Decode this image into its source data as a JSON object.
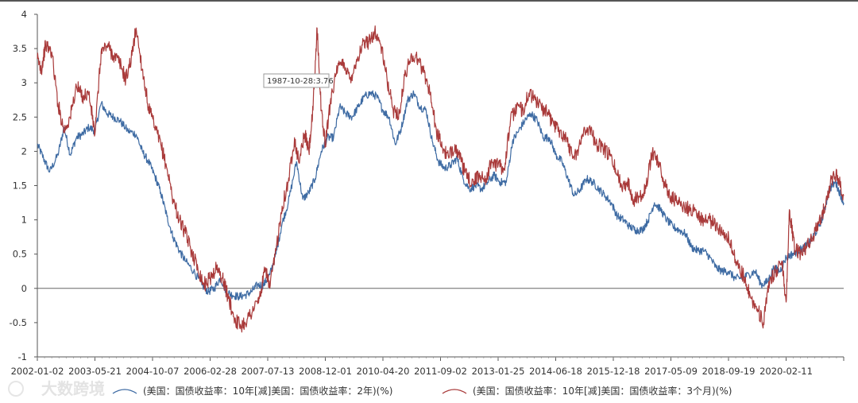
{
  "chart_data": {
    "type": "line",
    "title": "",
    "xlabel": "",
    "ylabel": "",
    "ylim": [
      -1,
      4
    ],
    "y_ticks": [
      -1,
      -0.5,
      0,
      0.5,
      1,
      1.5,
      2,
      2.5,
      3,
      3.5,
      4
    ],
    "x_tick_labels": [
      "2002-01-02",
      "2003-05-21",
      "2004-10-07",
      "2006-02-28",
      "2007-07-13",
      "2008-12-01",
      "2010-04-20",
      "2011-09-02",
      "2013-01-25",
      "2014-06-18",
      "2015-12-18",
      "2017-05-09",
      "2018-09-19",
      "2020-02-11"
    ],
    "x_range_years": [
      2002.0,
      2021.6
    ],
    "zero_line": true,
    "series": [
      {
        "name": "(美国：国债收益率：10年[减]美国：国债收益率：2年)(%)",
        "color": "#3e6ba3",
        "points": [
          [
            2002.0,
            2.1
          ],
          [
            2002.15,
            1.9
          ],
          [
            2002.3,
            1.7
          ],
          [
            2002.5,
            1.95
          ],
          [
            2002.65,
            2.35
          ],
          [
            2002.8,
            1.95
          ],
          [
            2002.95,
            2.2
          ],
          [
            2003.1,
            2.25
          ],
          [
            2003.25,
            2.35
          ],
          [
            2003.4,
            2.3
          ],
          [
            2003.55,
            2.7
          ],
          [
            2003.7,
            2.55
          ],
          [
            2003.85,
            2.5
          ],
          [
            2004.0,
            2.45
          ],
          [
            2004.2,
            2.3
          ],
          [
            2004.4,
            2.25
          ],
          [
            2004.55,
            2.0
          ],
          [
            2004.7,
            1.85
          ],
          [
            2004.85,
            1.65
          ],
          [
            2005.0,
            1.4
          ],
          [
            2005.15,
            1.05
          ],
          [
            2005.3,
            0.75
          ],
          [
            2005.45,
            0.55
          ],
          [
            2005.6,
            0.4
          ],
          [
            2005.8,
            0.25
          ],
          [
            2006.0,
            0.05
          ],
          [
            2006.15,
            -0.05
          ],
          [
            2006.3,
            0.0
          ],
          [
            2006.45,
            0.15
          ],
          [
            2006.6,
            -0.05
          ],
          [
            2006.75,
            -0.1
          ],
          [
            2006.9,
            -0.12
          ],
          [
            2007.05,
            -0.1
          ],
          [
            2007.2,
            -0.05
          ],
          [
            2007.35,
            0.05
          ],
          [
            2007.5,
            0.05
          ],
          [
            2007.65,
            0.2
          ],
          [
            2007.8,
            0.5
          ],
          [
            2007.95,
            0.95
          ],
          [
            2008.1,
            1.25
          ],
          [
            2008.3,
            1.85
          ],
          [
            2008.45,
            1.3
          ],
          [
            2008.6,
            1.4
          ],
          [
            2008.75,
            1.6
          ],
          [
            2008.9,
            2.0
          ],
          [
            2009.05,
            2.2
          ],
          [
            2009.2,
            2.2
          ],
          [
            2009.35,
            2.65
          ],
          [
            2009.5,
            2.55
          ],
          [
            2009.65,
            2.5
          ],
          [
            2009.8,
            2.65
          ],
          [
            2009.95,
            2.8
          ],
          [
            2010.1,
            2.85
          ],
          [
            2010.25,
            2.8
          ],
          [
            2010.4,
            2.6
          ],
          [
            2010.55,
            2.5
          ],
          [
            2010.7,
            2.1
          ],
          [
            2010.85,
            2.35
          ],
          [
            2011.0,
            2.75
          ],
          [
            2011.15,
            2.85
          ],
          [
            2011.3,
            2.65
          ],
          [
            2011.45,
            2.6
          ],
          [
            2011.6,
            2.15
          ],
          [
            2011.75,
            1.85
          ],
          [
            2011.9,
            1.75
          ],
          [
            2012.05,
            1.8
          ],
          [
            2012.2,
            1.9
          ],
          [
            2012.35,
            1.6
          ],
          [
            2012.5,
            1.45
          ],
          [
            2012.65,
            1.5
          ],
          [
            2012.8,
            1.45
          ],
          [
            2012.95,
            1.55
          ],
          [
            2013.1,
            1.65
          ],
          [
            2013.25,
            1.55
          ],
          [
            2013.4,
            1.55
          ],
          [
            2013.55,
            2.15
          ],
          [
            2013.7,
            2.3
          ],
          [
            2013.85,
            2.45
          ],
          [
            2014.0,
            2.55
          ],
          [
            2014.15,
            2.45
          ],
          [
            2014.3,
            2.2
          ],
          [
            2014.45,
            2.2
          ],
          [
            2014.6,
            1.95
          ],
          [
            2014.75,
            1.85
          ],
          [
            2014.9,
            1.6
          ],
          [
            2015.05,
            1.35
          ],
          [
            2015.2,
            1.45
          ],
          [
            2015.35,
            1.6
          ],
          [
            2015.5,
            1.55
          ],
          [
            2015.65,
            1.45
          ],
          [
            2015.8,
            1.35
          ],
          [
            2015.95,
            1.25
          ],
          [
            2016.1,
            1.05
          ],
          [
            2016.25,
            1.0
          ],
          [
            2016.4,
            0.9
          ],
          [
            2016.55,
            0.85
          ],
          [
            2016.7,
            0.85
          ],
          [
            2016.85,
            1.0
          ],
          [
            2017.0,
            1.25
          ],
          [
            2017.15,
            1.15
          ],
          [
            2017.3,
            1.0
          ],
          [
            2017.45,
            0.9
          ],
          [
            2017.6,
            0.85
          ],
          [
            2017.75,
            0.8
          ],
          [
            2017.9,
            0.6
          ],
          [
            2018.05,
            0.55
          ],
          [
            2018.2,
            0.55
          ],
          [
            2018.35,
            0.45
          ],
          [
            2018.5,
            0.3
          ],
          [
            2018.65,
            0.25
          ],
          [
            2018.8,
            0.25
          ],
          [
            2018.95,
            0.15
          ],
          [
            2019.1,
            0.15
          ],
          [
            2019.3,
            0.2
          ],
          [
            2019.45,
            0.25
          ],
          [
            2019.6,
            0.05
          ],
          [
            2019.75,
            0.1
          ],
          [
            2019.9,
            0.3
          ],
          [
            2020.05,
            0.25
          ],
          [
            2020.2,
            0.45
          ],
          [
            2020.35,
            0.5
          ],
          [
            2020.5,
            0.55
          ],
          [
            2020.65,
            0.6
          ],
          [
            2020.8,
            0.7
          ],
          [
            2020.95,
            0.85
          ],
          [
            2021.1,
            1.05
          ],
          [
            2021.25,
            1.45
          ],
          [
            2021.4,
            1.55
          ],
          [
            2021.5,
            1.4
          ],
          [
            2021.6,
            1.25
          ]
        ]
      },
      {
        "name": "(美国：国债收益率：10年[减]美国：国债收益率：3个月)(%)",
        "color": "#a93a3a",
        "points": [
          [
            2002.0,
            3.35
          ],
          [
            2002.1,
            3.2
          ],
          [
            2002.2,
            3.55
          ],
          [
            2002.35,
            3.45
          ],
          [
            2002.5,
            2.7
          ],
          [
            2002.65,
            2.3
          ],
          [
            2002.8,
            2.5
          ],
          [
            2002.95,
            2.95
          ],
          [
            2003.1,
            2.8
          ],
          [
            2003.25,
            2.85
          ],
          [
            2003.4,
            2.25
          ],
          [
            2003.55,
            3.45
          ],
          [
            2003.7,
            3.55
          ],
          [
            2003.85,
            3.4
          ],
          [
            2004.0,
            3.3
          ],
          [
            2004.15,
            3.05
          ],
          [
            2004.3,
            3.4
          ],
          [
            2004.4,
            3.8
          ],
          [
            2004.55,
            3.2
          ],
          [
            2004.7,
            2.65
          ],
          [
            2004.85,
            2.35
          ],
          [
            2005.0,
            2.1
          ],
          [
            2005.15,
            1.75
          ],
          [
            2005.3,
            1.3
          ],
          [
            2005.45,
            1.0
          ],
          [
            2005.6,
            0.8
          ],
          [
            2005.75,
            0.55
          ],
          [
            2005.9,
            0.3
          ],
          [
            2006.05,
            0.05
          ],
          [
            2006.2,
            0.15
          ],
          [
            2006.35,
            0.3
          ],
          [
            2006.5,
            0.15
          ],
          [
            2006.65,
            -0.15
          ],
          [
            2006.8,
            -0.45
          ],
          [
            2006.95,
            -0.55
          ],
          [
            2007.1,
            -0.45
          ],
          [
            2007.25,
            -0.3
          ],
          [
            2007.4,
            -0.15
          ],
          [
            2007.55,
            0.3
          ],
          [
            2007.65,
            0.0
          ],
          [
            2007.8,
            0.55
          ],
          [
            2007.95,
            1.2
          ],
          [
            2008.1,
            1.55
          ],
          [
            2008.25,
            2.2
          ],
          [
            2008.35,
            1.85
          ],
          [
            2008.5,
            2.25
          ],
          [
            2008.6,
            2.0
          ],
          [
            2008.7,
            2.6
          ],
          [
            2008.8,
            3.8
          ],
          [
            2008.9,
            2.6
          ],
          [
            2009.0,
            2.1
          ],
          [
            2009.15,
            2.85
          ],
          [
            2009.3,
            3.2
          ],
          [
            2009.45,
            3.3
          ],
          [
            2009.6,
            3.05
          ],
          [
            2009.75,
            3.3
          ],
          [
            2009.9,
            3.55
          ],
          [
            2010.05,
            3.6
          ],
          [
            2010.2,
            3.75
          ],
          [
            2010.35,
            3.55
          ],
          [
            2010.5,
            3.05
          ],
          [
            2010.65,
            2.6
          ],
          [
            2010.8,
            2.55
          ],
          [
            2010.95,
            3.15
          ],
          [
            2011.1,
            3.4
          ],
          [
            2011.25,
            3.35
          ],
          [
            2011.4,
            3.15
          ],
          [
            2011.55,
            2.85
          ],
          [
            2011.7,
            2.3
          ],
          [
            2011.85,
            2.05
          ],
          [
            2012.0,
            1.9
          ],
          [
            2012.15,
            2.1
          ],
          [
            2012.3,
            1.85
          ],
          [
            2012.45,
            1.6
          ],
          [
            2012.6,
            1.55
          ],
          [
            2012.75,
            1.65
          ],
          [
            2012.9,
            1.6
          ],
          [
            2013.05,
            1.85
          ],
          [
            2013.2,
            1.8
          ],
          [
            2013.35,
            1.75
          ],
          [
            2013.5,
            2.45
          ],
          [
            2013.65,
            2.65
          ],
          [
            2013.8,
            2.6
          ],
          [
            2013.95,
            2.85
          ],
          [
            2014.1,
            2.75
          ],
          [
            2014.25,
            2.65
          ],
          [
            2014.4,
            2.55
          ],
          [
            2014.55,
            2.4
          ],
          [
            2014.7,
            2.3
          ],
          [
            2014.85,
            2.2
          ],
          [
            2015.0,
            1.95
          ],
          [
            2015.15,
            2.0
          ],
          [
            2015.3,
            2.35
          ],
          [
            2015.45,
            2.3
          ],
          [
            2015.6,
            2.1
          ],
          [
            2015.75,
            2.05
          ],
          [
            2015.9,
            1.95
          ],
          [
            2016.05,
            1.75
          ],
          [
            2016.2,
            1.5
          ],
          [
            2016.35,
            1.55
          ],
          [
            2016.5,
            1.3
          ],
          [
            2016.65,
            1.35
          ],
          [
            2016.8,
            1.5
          ],
          [
            2016.95,
            2.0
          ],
          [
            2017.1,
            1.85
          ],
          [
            2017.25,
            1.5
          ],
          [
            2017.4,
            1.35
          ],
          [
            2017.55,
            1.25
          ],
          [
            2017.7,
            1.2
          ],
          [
            2017.85,
            1.15
          ],
          [
            2018.0,
            1.15
          ],
          [
            2018.15,
            1.0
          ],
          [
            2018.3,
            1.0
          ],
          [
            2018.45,
            0.95
          ],
          [
            2018.6,
            0.85
          ],
          [
            2018.75,
            0.8
          ],
          [
            2018.9,
            0.55
          ],
          [
            2019.05,
            0.3
          ],
          [
            2019.2,
            0.15
          ],
          [
            2019.35,
            -0.15
          ],
          [
            2019.5,
            -0.3
          ],
          [
            2019.65,
            -0.5
          ],
          [
            2019.8,
            0.1
          ],
          [
            2019.95,
            0.25
          ],
          [
            2020.1,
            0.4
          ],
          [
            2020.2,
            -0.2
          ],
          [
            2020.28,
            1.15
          ],
          [
            2020.4,
            0.6
          ],
          [
            2020.55,
            0.5
          ],
          [
            2020.7,
            0.6
          ],
          [
            2020.85,
            0.75
          ],
          [
            2021.0,
            0.95
          ],
          [
            2021.15,
            1.2
          ],
          [
            2021.3,
            1.6
          ],
          [
            2021.45,
            1.65
          ],
          [
            2021.6,
            1.35
          ]
        ]
      }
    ],
    "tooltip": "1987-10-28:3.76"
  },
  "watermark": "大数跨境"
}
